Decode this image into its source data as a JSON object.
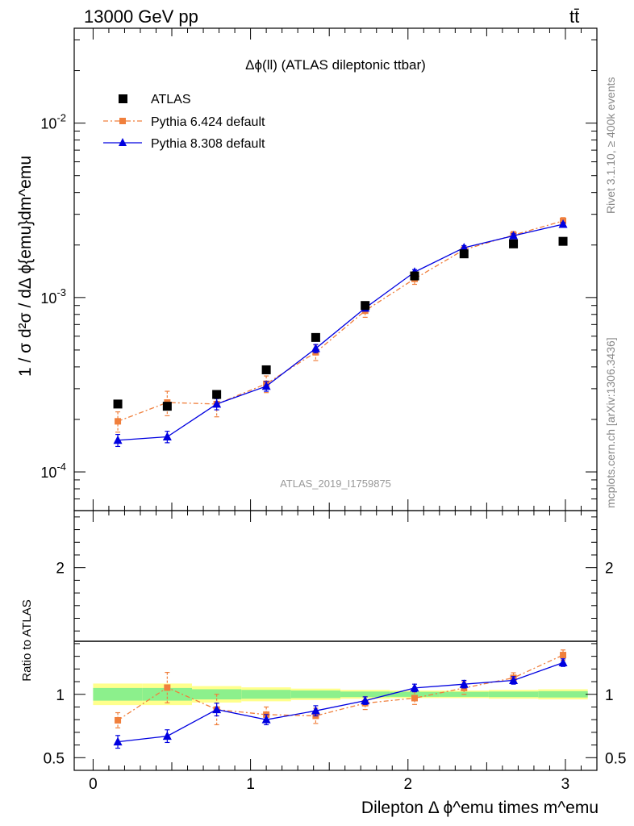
{
  "header": {
    "left": "13000 GeV pp",
    "right": "tt̄"
  },
  "side_labels": {
    "top": "Rivet 3.1.10, ≥ 400k events",
    "bottom": "mcplots.cern.ch [arXiv:1306.3436]"
  },
  "chart_data": [
    {
      "type": "scatter",
      "panel": "main",
      "title": "Δϕ(ll) (ATLAS dileptonic ttbar)",
      "watermark": "ATLAS_2019_I1759875",
      "ylabel": "1 / σ  d²σ / dΔ ϕ{emu}dm^emu",
      "yscale": "log",
      "ylim": [
        6e-05,
        0.035
      ],
      "xlim": [
        -0.12,
        3.2
      ],
      "x": [
        0.157,
        0.471,
        0.785,
        1.1,
        1.414,
        1.728,
        2.042,
        2.356,
        2.67,
        2.985
      ],
      "y_tick_labels": [
        "10^-4",
        "10^-3",
        "10^-2"
      ],
      "legend_position": "top-left",
      "series": [
        {
          "name": "ATLAS",
          "color": "#000000",
          "marker": "square",
          "values": [
            0.000245,
            0.000238,
            0.000278,
            0.000385,
            0.00059,
            0.0009,
            0.00133,
            0.00178,
            0.00203,
            0.0021
          ],
          "errors": [
            3e-06,
            3e-06,
            3e-06,
            4e-06,
            6e-06,
            9e-06,
            1.3e-05,
            1.8e-05,
            2e-05,
            2e-05
          ]
        },
        {
          "name": "Pythia 6.424 default",
          "color": "#f07f3c",
          "marker": "square",
          "line": "dashdot",
          "values": [
            0.000195,
            0.00025,
            0.000245,
            0.00032,
            0.000485,
            0.00084,
            0.00128,
            0.00188,
            0.00228,
            0.00275
          ],
          "errors": [
            2.6e-05,
            4e-05,
            3.8e-05,
            3.5e-05,
            5e-05,
            7e-05,
            9e-05,
            0.0001,
            0.00011,
            0.00012
          ]
        },
        {
          "name": "Pythia 8.308 default",
          "color": "#0000e0",
          "marker": "triangle",
          "line": "solid",
          "values": [
            0.000152,
            0.000159,
            0.000245,
            0.00031,
            0.00051,
            0.00087,
            0.0014,
            0.00193,
            0.00226,
            0.00263
          ],
          "errors": [
            1.2e-05,
            1.2e-05,
            1.8e-05,
            2e-05,
            2.8e-05,
            3.5e-05,
            4.5e-05,
            5.5e-05,
            6e-05,
            6e-05
          ]
        }
      ]
    },
    {
      "type": "scatter",
      "panel": "ratio",
      "ylabel": "Ratio to ATLAS",
      "xlabel": "Dilepton Δ ϕ^emu times m^emu",
      "ylim": [
        0.4,
        2.45
      ],
      "xlim": [
        -0.12,
        3.2
      ],
      "x_ticks": [
        0,
        1,
        2,
        3
      ],
      "y_ticks": [
        0.5,
        1,
        2
      ],
      "grid": false,
      "bin_edges": [
        0,
        0.314,
        0.628,
        0.942,
        1.257,
        1.571,
        1.885,
        2.199,
        2.513,
        2.827,
        3.142
      ],
      "band_yellow_halfwidth": [
        0.085,
        0.085,
        0.065,
        0.055,
        0.045,
        0.035,
        0.03,
        0.03,
        0.035,
        0.04
      ],
      "band_green_halfwidth": [
        0.05,
        0.05,
        0.04,
        0.035,
        0.03,
        0.022,
        0.02,
        0.02,
        0.022,
        0.025
      ],
      "x": [
        0.157,
        0.471,
        0.785,
        1.1,
        1.414,
        1.728,
        2.042,
        2.356,
        2.67,
        2.985
      ],
      "series": [
        {
          "name": "Pythia 6.424 default",
          "color": "#f07f3c",
          "values": [
            0.795,
            1.053,
            0.88,
            0.84,
            0.83,
            0.93,
            0.97,
            1.05,
            1.13,
            1.31
          ],
          "errors": [
            0.06,
            0.12,
            0.12,
            0.06,
            0.06,
            0.05,
            0.05,
            0.05,
            0.04,
            0.04
          ]
        },
        {
          "name": "Pythia 8.308 default",
          "color": "#0000e0",
          "values": [
            0.625,
            0.67,
            0.88,
            0.8,
            0.87,
            0.95,
            1.05,
            1.08,
            1.11,
            1.25
          ],
          "errors": [
            0.05,
            0.05,
            0.05,
            0.04,
            0.04,
            0.03,
            0.03,
            0.03,
            0.03,
            0.03
          ]
        }
      ]
    }
  ]
}
